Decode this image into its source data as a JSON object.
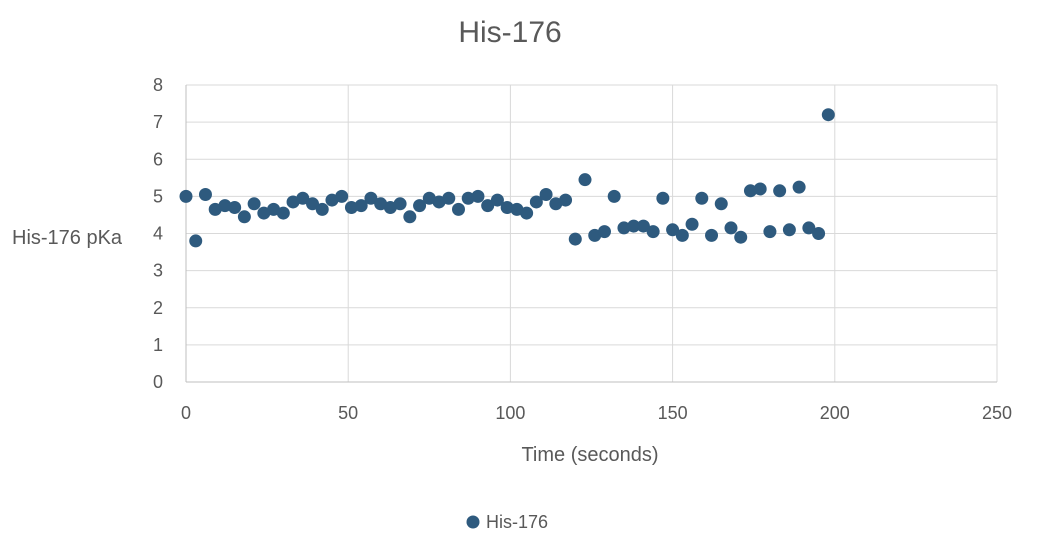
{
  "chart_data": {
    "type": "scatter",
    "title": "His-176",
    "xlabel": "Time (seconds)",
    "ylabel": "His-176 pKa",
    "xlim": [
      0,
      250
    ],
    "ylim": [
      0,
      8
    ],
    "x_ticks": [
      "0",
      "50",
      "100",
      "150",
      "200",
      "250"
    ],
    "y_ticks": [
      "0",
      "1",
      "2",
      "3",
      "4",
      "5",
      "6",
      "7",
      "8"
    ],
    "grid": true,
    "legend_position": "bottom",
    "series_color": "#2e5a7e",
    "series": [
      {
        "name": "His-176",
        "x": [
          0,
          3,
          6,
          9,
          12,
          15,
          18,
          21,
          24,
          27,
          30,
          33,
          36,
          39,
          42,
          45,
          48,
          51,
          54,
          57,
          60,
          63,
          66,
          69,
          72,
          75,
          78,
          81,
          84,
          87,
          90,
          93,
          96,
          99,
          102,
          105,
          108,
          111,
          114,
          117,
          120,
          123,
          126,
          129,
          132,
          135,
          138,
          141,
          144,
          147,
          150,
          153,
          156,
          159,
          162,
          165,
          168,
          171,
          174,
          177,
          180,
          183,
          186,
          189,
          192,
          195,
          198
        ],
        "y": [
          5.0,
          3.8,
          5.05,
          4.65,
          4.75,
          4.7,
          4.45,
          4.8,
          4.55,
          4.65,
          4.55,
          4.85,
          4.95,
          4.8,
          4.65,
          4.9,
          5.0,
          4.7,
          4.75,
          4.95,
          4.8,
          4.7,
          4.8,
          4.45,
          4.75,
          4.95,
          4.85,
          4.95,
          4.65,
          4.95,
          5.0,
          4.75,
          4.9,
          4.7,
          4.65,
          4.55,
          4.85,
          5.05,
          4.8,
          4.9,
          3.85,
          5.45,
          3.95,
          4.05,
          5.0,
          4.15,
          4.2,
          4.2,
          4.05,
          4.95,
          4.1,
          3.95,
          4.25,
          4.95,
          3.95,
          4.8,
          4.15,
          3.9,
          5.15,
          5.2,
          4.05,
          5.15,
          4.1,
          5.25,
          4.15,
          4.0,
          7.2
        ]
      }
    ]
  }
}
